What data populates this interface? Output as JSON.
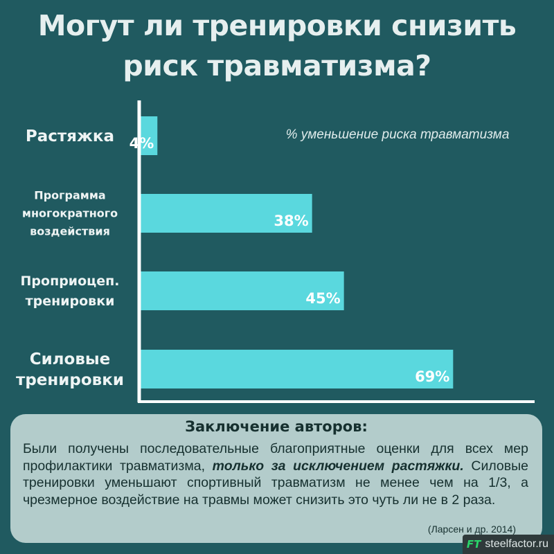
{
  "title": {
    "line1": "Могут ли тренировки снизить",
    "line2": "риск травматизма?"
  },
  "chart_data": {
    "type": "bar",
    "orientation": "horizontal",
    "categories": [
      [
        "Растяжка"
      ],
      [
        "Программа",
        "многократного",
        "воздействия"
      ],
      [
        "Проприоцеп.",
        "тренировки"
      ],
      [
        "Силовые",
        "тренировки"
      ]
    ],
    "values": [
      4,
      38,
      45,
      69
    ],
    "value_labels": [
      "4%",
      "38%",
      "45%",
      "69%"
    ],
    "annotation": "% уменьшение риска травматизма",
    "xlim": [
      0,
      100
    ],
    "grid": false,
    "bar_color": "#5ad8de"
  },
  "conclusion": {
    "title": "Заключение авторов:",
    "text_before": "Были получены последовательные благоприятные оценки для всех мер профилактики травматизма, ",
    "text_emphasis": "только за исключением растяжки.",
    "text_after": " Силовые тренировки уменьшают спортивный травматизм не менее чем на 1/3, а чрезмерное воздействие на травмы может снизить это чуть ли не в 2 раза.",
    "citation": "(Ларсен и др. 2014)"
  },
  "watermark": {
    "logo": "FT",
    "url": "steelfactor.ru"
  }
}
